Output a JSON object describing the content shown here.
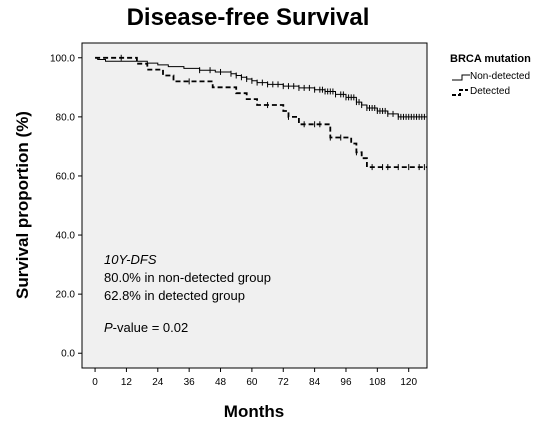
{
  "chart_data": {
    "type": "line",
    "title": "Disease-free Survival",
    "xlabel": "Months",
    "ylabel": "Survival proportion (%)",
    "xlim": [
      -5,
      127
    ],
    "ylim": [
      -5,
      105
    ],
    "x_ticks": [
      0,
      12,
      24,
      36,
      48,
      60,
      72,
      84,
      96,
      108,
      120
    ],
    "y_ticks": [
      0,
      20,
      40,
      60,
      80,
      100
    ],
    "y_tick_labels": [
      "0.0",
      "20.0",
      "40.0",
      "60.0",
      "80.0",
      "100.0"
    ],
    "legend": {
      "title": "BRCA mutation",
      "entries": [
        "Non-detected",
        "Detected"
      ],
      "position": "top-right, outside plot"
    },
    "series": [
      {
        "name": "Non-detected",
        "style": "solid",
        "step_points": [
          [
            0,
            100
          ],
          [
            1,
            99.4
          ],
          [
            4,
            98.8
          ],
          [
            20,
            98.2
          ],
          [
            24,
            97.6
          ],
          [
            28,
            97
          ],
          [
            34,
            96.4
          ],
          [
            40,
            95.8
          ],
          [
            46,
            95.2
          ],
          [
            52,
            94.6
          ],
          [
            54,
            94
          ],
          [
            56,
            93.4
          ],
          [
            58,
            92.8
          ],
          [
            60,
            92.2
          ],
          [
            62,
            91.6
          ],
          [
            66,
            91
          ],
          [
            72,
            90.4
          ],
          [
            78,
            89.8
          ],
          [
            84,
            89.2
          ],
          [
            88,
            88.6
          ],
          [
            92,
            87.6
          ],
          [
            96,
            86.6
          ],
          [
            100,
            85
          ],
          [
            102,
            84
          ],
          [
            104,
            83
          ],
          [
            108,
            82
          ],
          [
            112,
            81
          ],
          [
            116,
            80
          ],
          [
            127,
            80
          ]
        ],
        "censor_x": [
          40,
          44,
          48,
          52,
          54,
          56,
          58,
          60,
          62,
          64,
          66,
          68,
          70,
          72,
          74,
          76,
          78,
          80,
          82,
          84,
          86,
          87,
          88,
          89,
          90,
          91,
          92,
          94,
          95,
          96,
          97,
          98,
          99,
          100,
          101,
          102,
          104,
          105,
          106,
          107,
          108,
          109,
          110,
          111,
          112,
          114,
          116,
          117,
          118,
          119,
          120,
          121,
          122,
          123,
          124,
          125,
          126
        ]
      },
      {
        "name": "Detected",
        "style": "dashed",
        "step_points": [
          [
            0,
            100
          ],
          [
            2,
            100
          ],
          [
            13,
            100
          ],
          [
            16,
            98
          ],
          [
            20,
            96
          ],
          [
            26,
            94
          ],
          [
            30,
            92
          ],
          [
            40,
            92
          ],
          [
            45,
            90
          ],
          [
            54,
            88
          ],
          [
            58,
            86
          ],
          [
            62,
            84
          ],
          [
            72,
            82
          ],
          [
            74,
            80
          ],
          [
            78,
            77.5
          ],
          [
            90,
            73
          ],
          [
            98,
            71
          ],
          [
            100,
            68
          ],
          [
            102,
            66
          ],
          [
            104,
            63
          ],
          [
            127,
            63
          ]
        ],
        "censor_x": [
          10,
          36,
          66,
          74,
          80,
          84,
          86,
          90,
          94,
          100,
          106,
          110,
          112,
          116,
          120,
          124,
          126
        ]
      }
    ],
    "annotations": {
      "label": "10Y-DFS",
      "line1": "80.0% in non-detected group",
      "line2": "62.8% in detected group",
      "p_italic": "P",
      "p_rest": "-value  =  0.02"
    }
  }
}
